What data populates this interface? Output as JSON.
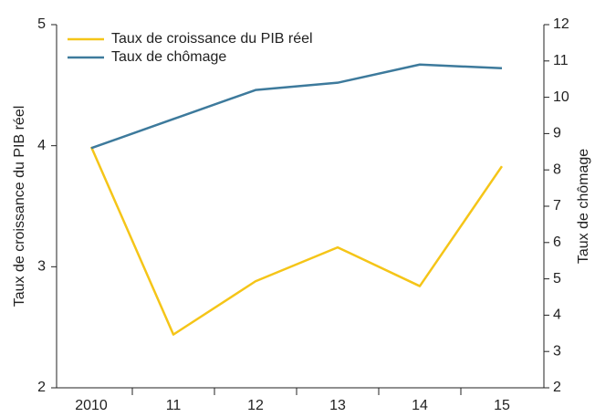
{
  "chart_data": {
    "type": "line",
    "categories": [
      "2010",
      "11",
      "12",
      "13",
      "14",
      "15"
    ],
    "ylabel": "Taux de croissance du PIB réel",
    "y2label": "Taux de chômage",
    "ylim": [
      2,
      5
    ],
    "yticks": [
      2,
      3,
      4,
      5
    ],
    "y2lim": [
      2,
      12
    ],
    "y2ticks": [
      2,
      3,
      4,
      5,
      6,
      7,
      8,
      9,
      10,
      11,
      12
    ],
    "legend": "upper left",
    "series": [
      {
        "name": "Taux de croissance du PIB réel",
        "color": "#f5c518",
        "values": [
          3.99,
          2.44,
          2.88,
          3.16,
          2.84,
          3.83
        ]
      },
      {
        "name": "Taux de chômage",
        "color": "#3d7a9c",
        "axis": "y2",
        "values": [
          8.6,
          9.4,
          10.2,
          10.4,
          10.9,
          10.8
        ]
      }
    ]
  }
}
